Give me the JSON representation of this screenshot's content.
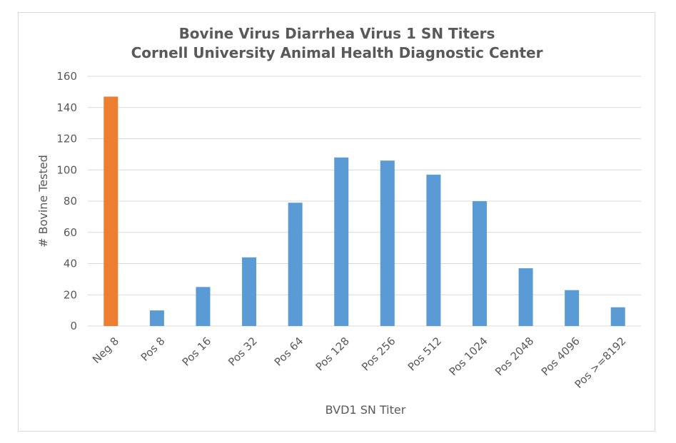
{
  "chart_data": {
    "type": "bar",
    "title": [
      "Bovine Virus Diarrhea Virus 1 SN Titers",
      "Cornell University Animal Health Diagnostic Center"
    ],
    "xlabel": "BVD1 SN Titer",
    "ylabel": "# Bovine Tested",
    "categories": [
      "Neg 8",
      "Pos 8",
      "Pos 16",
      "Pos 32",
      "Pos 64",
      "Pos 128",
      "Pos 256",
      "Pos 512",
      "Pos 1024",
      "Pos 2048",
      "Pos 4096",
      "Pos >=8192"
    ],
    "values": [
      147,
      10,
      25,
      44,
      79,
      108,
      106,
      97,
      80,
      37,
      23,
      12
    ],
    "bar_colors": [
      "#ed7d31",
      "#5b9bd5",
      "#5b9bd5",
      "#5b9bd5",
      "#5b9bd5",
      "#5b9bd5",
      "#5b9bd5",
      "#5b9bd5",
      "#5b9bd5",
      "#5b9bd5",
      "#5b9bd5",
      "#5b9bd5"
    ],
    "ylim": [
      0,
      160
    ],
    "yticks": [
      0,
      20,
      40,
      60,
      80,
      100,
      120,
      140,
      160
    ],
    "grid": true,
    "legend": "none"
  }
}
